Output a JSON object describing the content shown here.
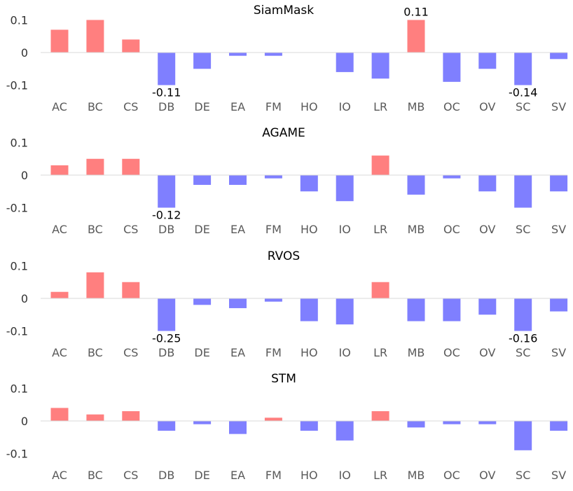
{
  "chart_data": [
    {
      "type": "bar",
      "title": "SiamMask",
      "categories": [
        "AC",
        "BC",
        "CS",
        "DB",
        "DE",
        "EA",
        "FM",
        "HO",
        "IO",
        "LR",
        "MB",
        "OC",
        "OV",
        "SC",
        "SV"
      ],
      "values": [
        0.07,
        0.1,
        0.04,
        -0.1,
        -0.05,
        -0.01,
        -0.01,
        0.0,
        -0.06,
        -0.08,
        0.1,
        -0.09,
        -0.05,
        -0.1,
        -0.02
      ],
      "ylim": [
        -0.1,
        0.1
      ],
      "yticks": [
        {
          "value": 0.1,
          "label": "0.1"
        },
        {
          "value": 0,
          "label": "0"
        },
        {
          "value": -0.1,
          "label": "-0.1"
        }
      ],
      "annotations": [
        {
          "category": "DB",
          "label": "-0.11",
          "value": -0.11
        },
        {
          "category": "MB",
          "label": "0.11",
          "value": 0.11
        },
        {
          "category": "SC",
          "label": "-0.14",
          "value": -0.14
        }
      ],
      "positive_color": "#ff7f7f",
      "negative_color": "#7f7fff",
      "grid": false
    },
    {
      "type": "bar",
      "title": "AGAME",
      "categories": [
        "AC",
        "BC",
        "CS",
        "DB",
        "DE",
        "EA",
        "FM",
        "HO",
        "IO",
        "LR",
        "MB",
        "OC",
        "OV",
        "SC",
        "SV"
      ],
      "values": [
        0.03,
        0.05,
        0.05,
        -0.1,
        -0.03,
        -0.03,
        -0.01,
        -0.05,
        -0.08,
        0.06,
        -0.06,
        -0.01,
        -0.05,
        -0.1,
        -0.05
      ],
      "ylim": [
        -0.1,
        0.1
      ],
      "yticks": [
        {
          "value": 0.1,
          "label": "0.1"
        },
        {
          "value": 0,
          "label": "0"
        },
        {
          "value": -0.1,
          "label": "-0.1"
        }
      ],
      "annotations": [
        {
          "category": "DB",
          "label": "-0.12",
          "value": -0.12
        }
      ],
      "positive_color": "#ff7f7f",
      "negative_color": "#7f7fff",
      "grid": false
    },
    {
      "type": "bar",
      "title": "RVOS",
      "categories": [
        "AC",
        "BC",
        "CS",
        "DB",
        "DE",
        "EA",
        "FM",
        "HO",
        "IO",
        "LR",
        "MB",
        "OC",
        "OV",
        "SC",
        "SV"
      ],
      "values": [
        0.02,
        0.08,
        0.05,
        -0.1,
        -0.02,
        -0.03,
        -0.01,
        -0.07,
        -0.08,
        0.05,
        -0.07,
        -0.07,
        -0.05,
        -0.1,
        -0.04
      ],
      "ylim": [
        -0.1,
        0.1
      ],
      "yticks": [
        {
          "value": 0.1,
          "label": "0.1"
        },
        {
          "value": 0,
          "label": "0"
        },
        {
          "value": -0.1,
          "label": "-0.1"
        }
      ],
      "annotations": [
        {
          "category": "DB",
          "label": "-0.25",
          "value": -0.25
        },
        {
          "category": "SC",
          "label": "-0.16",
          "value": -0.16
        }
      ],
      "positive_color": "#ff7f7f",
      "negative_color": "#7f7fff",
      "grid": false
    },
    {
      "type": "bar",
      "title": "STM",
      "categories": [
        "AC",
        "BC",
        "CS",
        "DB",
        "DE",
        "EA",
        "FM",
        "HO",
        "IO",
        "LR",
        "MB",
        "OC",
        "OV",
        "SC",
        "SV"
      ],
      "values": [
        0.04,
        0.02,
        0.03,
        -0.03,
        -0.01,
        -0.04,
        0.01,
        -0.03,
        -0.06,
        0.03,
        -0.02,
        -0.01,
        -0.01,
        -0.09,
        -0.03
      ],
      "ylim": [
        -0.1,
        0.1
      ],
      "yticks": [
        {
          "value": 0.1,
          "label": "0.1"
        },
        {
          "value": 0,
          "label": "0"
        },
        {
          "value": -0.1,
          "label": "-0.1"
        }
      ],
      "annotations": [],
      "positive_color": "#ff7f7f",
      "negative_color": "#7f7fff",
      "grid": false
    }
  ]
}
